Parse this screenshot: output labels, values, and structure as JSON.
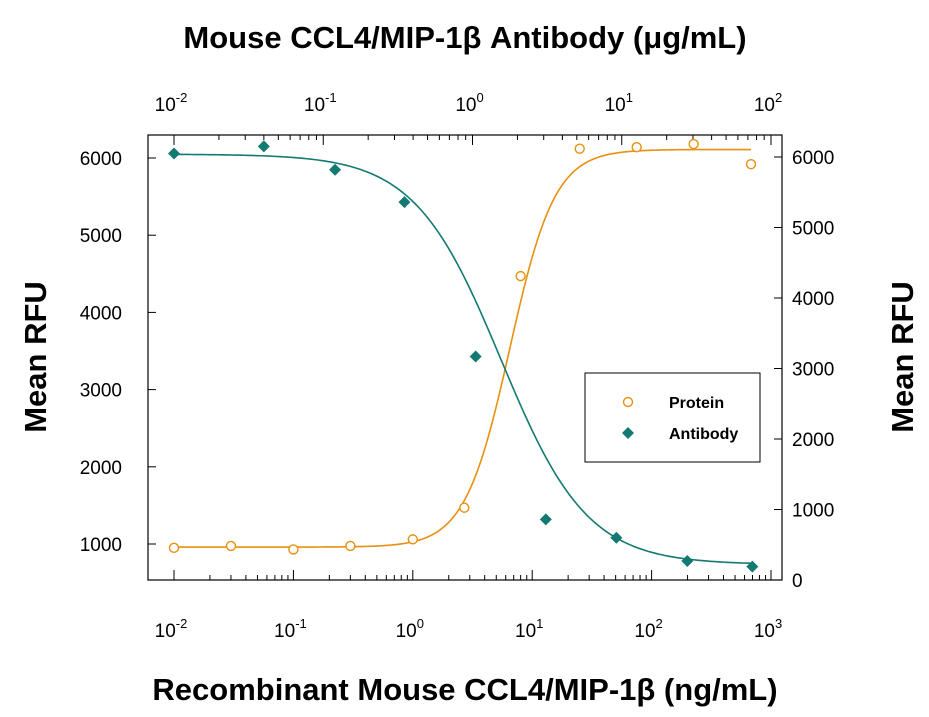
{
  "chart_data": {
    "type": "scatter",
    "title_top": "Mouse CCL4/MIP-1β Antibody (μg/mL)",
    "xlabel": "Recombinant Mouse CCL4/MIP-1β (ng/mL)",
    "ylabel_left": "Mean RFU",
    "ylabel_right": "Mean RFU",
    "x_bottom": {
      "scale": "log",
      "range": [
        0.01,
        1000
      ],
      "tick_labels": [
        {
          "base": "10",
          "exp": "-2"
        },
        {
          "base": "10",
          "exp": "-1"
        },
        {
          "base": "10",
          "exp": "0"
        },
        {
          "base": "10",
          "exp": "1"
        },
        {
          "base": "10",
          "exp": "2"
        },
        {
          "base": "10",
          "exp": "3"
        }
      ]
    },
    "x_top": {
      "scale": "log",
      "range": [
        0.01,
        100
      ],
      "tick_labels": [
        {
          "base": "10",
          "exp": "-2"
        },
        {
          "base": "10",
          "exp": "-1"
        },
        {
          "base": "10",
          "exp": "0"
        },
        {
          "base": "10",
          "exp": "1"
        },
        {
          "base": "10",
          "exp": "2"
        }
      ]
    },
    "y_left": {
      "range": [
        700,
        6300
      ],
      "ticks": [
        1000,
        2000,
        3000,
        4000,
        5000,
        6000
      ]
    },
    "y_right": {
      "range": [
        0,
        6200
      ],
      "ticks": [
        0,
        1000,
        2000,
        3000,
        4000,
        5000,
        6000
      ]
    },
    "legend": {
      "position": "right",
      "entries": [
        "Protein",
        "Antibody"
      ]
    },
    "series": [
      {
        "name": "Protein",
        "axis": "bottom-left",
        "marker": "open-circle",
        "color": "#e8900f",
        "x": [
          0.01,
          0.03,
          0.1,
          0.3,
          1,
          2.7,
          8,
          25,
          75,
          225,
          680
        ],
        "y": [
          950,
          975,
          930,
          975,
          1060,
          1470,
          4470,
          6120,
          6140,
          6180,
          5920
        ],
        "fit": {
          "bottom": 960,
          "top": 6110,
          "ec50": 6.5,
          "hill": 2.3
        }
      },
      {
        "name": "Antibody",
        "axis": "top-right",
        "marker": "filled-diamond",
        "color": "#127a70",
        "x": [
          0.01,
          0.04,
          0.12,
          0.35,
          1.05,
          3.1,
          9.2,
          27.5,
          75
        ],
        "y": [
          6050,
          6150,
          5820,
          5360,
          3170,
          860,
          600,
          270,
          190
        ],
        "fit": {
          "bottom": 220,
          "top": 6040,
          "ec50": 1.55,
          "hill": 1.5
        }
      }
    ]
  }
}
